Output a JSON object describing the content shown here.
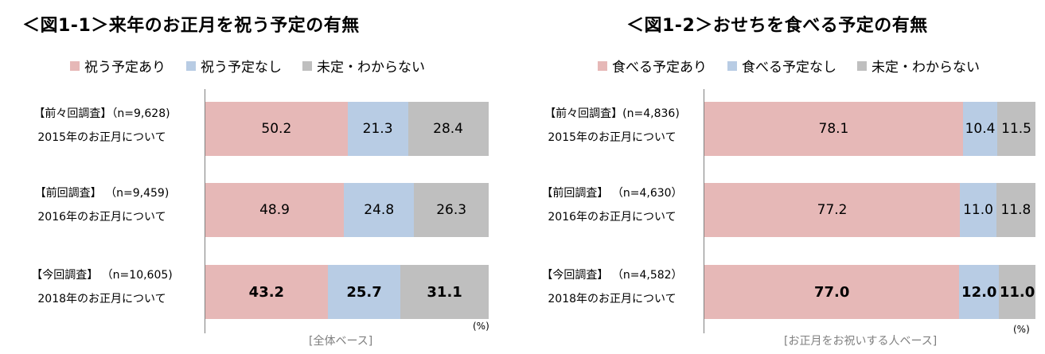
{
  "colors": {
    "yes": "#e6b8b7",
    "no": "#b8cce4",
    "unknown": "#bfbfbf"
  },
  "chart_data": [
    {
      "type": "bar",
      "stacked": true,
      "orientation": "horizontal",
      "title": "＜図1-1＞来年のお正月を祝う予定の有無",
      "legend": [
        "祝う予定あり",
        "祝う予定なし",
        "未定・わからない"
      ],
      "legend_position": "top",
      "categories": [
        {
          "line1": "【前々回調査】（n=9,628)",
          "line2": "2015年のお正月について"
        },
        {
          "line1": "【前回調査】 （n=9,459)",
          "line2": "2016年のお正月について"
        },
        {
          "line1": "【今回調査】 （n=10,605)",
          "line2": "2018年のお正月について"
        }
      ],
      "series": [
        {
          "name": "祝う予定あり",
          "values": [
            50.2,
            48.9,
            43.2
          ],
          "labels": [
            "50.2",
            "48.9",
            "43.2"
          ]
        },
        {
          "name": "祝う予定なし",
          "values": [
            21.3,
            24.8,
            25.7
          ],
          "labels": [
            "21.3",
            "24.8",
            "25.7"
          ]
        },
        {
          "name": "未定・わからない",
          "values": [
            28.4,
            26.3,
            31.1
          ],
          "labels": [
            "28.4",
            "26.3",
            "31.1"
          ]
        }
      ],
      "bold_row": 2,
      "unit": "(%)",
      "base_note": "[全体ベース]",
      "xlim": [
        0,
        100
      ]
    },
    {
      "type": "bar",
      "stacked": true,
      "orientation": "horizontal",
      "title": "＜図1-2＞おせちを食べる予定の有無",
      "legend": [
        "食べる予定あり",
        "食べる予定なし",
        "未定・わからない"
      ],
      "legend_position": "top",
      "categories": [
        {
          "line1": "【前々回調査】(n=4,836)",
          "line2": "2015年のお正月について"
        },
        {
          "line1": "【前回調査】 （n=4,630）",
          "line2": "2016年のお正月について"
        },
        {
          "line1": "【今回調査】 （n=4,582）",
          "line2": "2018年のお正月について"
        }
      ],
      "series": [
        {
          "name": "食べる予定あり",
          "values": [
            78.1,
            77.2,
            77.0
          ],
          "labels": [
            "78.1",
            "77.2",
            "77.0"
          ]
        },
        {
          "name": "食べる予定なし",
          "values": [
            10.4,
            11.0,
            12.0
          ],
          "labels": [
            "10.4",
            "11.0",
            "12.0"
          ]
        },
        {
          "name": "未定・わからない",
          "values": [
            11.5,
            11.8,
            11.0
          ],
          "labels": [
            "11.5",
            "11.8",
            "11.0"
          ]
        }
      ],
      "bold_row": 2,
      "unit": "(%)",
      "base_note": "[お正月をお祝いする人ベース]",
      "xlim": [
        0,
        100
      ]
    }
  ]
}
